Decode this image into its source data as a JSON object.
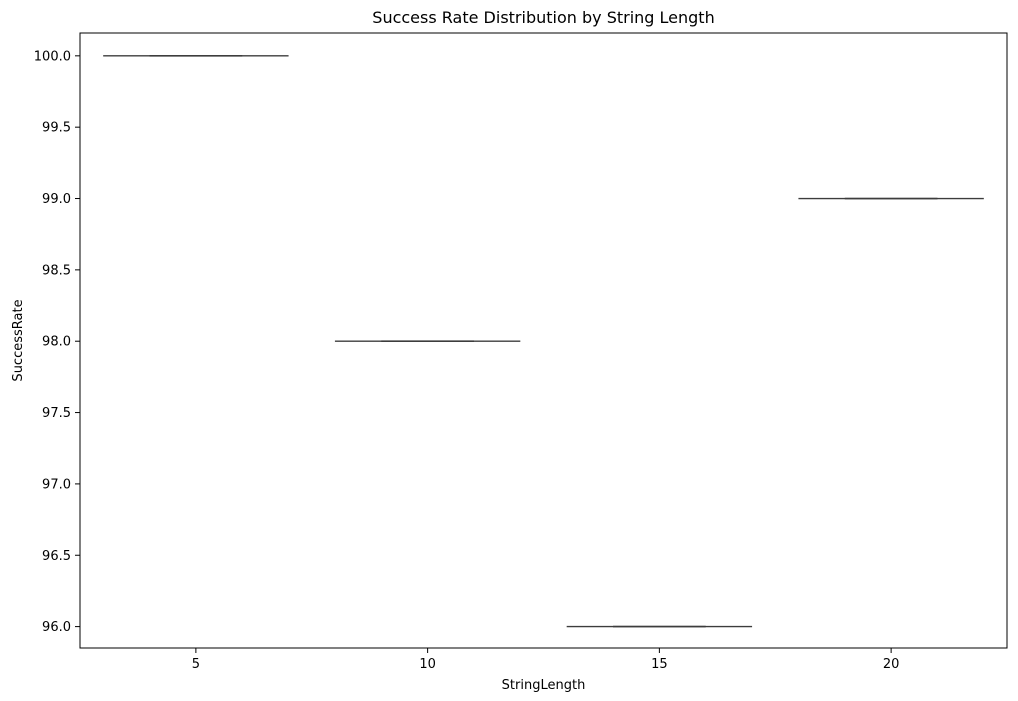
{
  "chart_data": {
    "type": "box",
    "title": "Success Rate Distribution by String Length",
    "xlabel": "StringLength",
    "ylabel": "SuccessRate",
    "categories": [
      "5",
      "10",
      "15",
      "20"
    ],
    "series": [
      {
        "values": [
          100.0,
          98.0,
          96.0,
          99.0
        ]
      }
    ],
    "ylim": [
      95.85,
      100.16
    ],
    "yticks": [
      96.0,
      96.5,
      97.0,
      97.5,
      98.0,
      98.5,
      99.0,
      99.5,
      100.0
    ],
    "ytick_labels": [
      "96.0",
      "96.5",
      "97.0",
      "97.5",
      "98.0",
      "98.5",
      "99.0",
      "99.5",
      "100.0"
    ],
    "grid": false,
    "colors": {
      "box_line": "#3d3d3d",
      "axes": "#000000",
      "background": "#ffffff"
    }
  }
}
